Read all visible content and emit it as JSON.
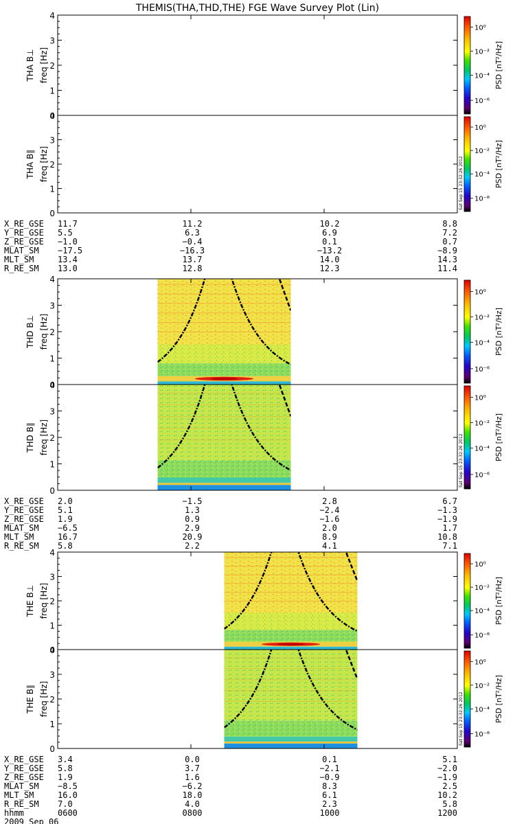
{
  "title": "THEMIS(THA,THD,THE) FGE Wave Survey Plot (Lin)",
  "stamp": "Sat Sep 15 23:32:26 2012",
  "colorbar": {
    "label": "PSD [nT²/Hz]",
    "ticks": [
      "10⁰",
      "10⁻²",
      "10⁻⁴",
      "10⁻⁶"
    ]
  },
  "freq_ticks": [
    "0",
    "1",
    "2",
    "3",
    "4"
  ],
  "chart_data": [
    {
      "type": "heatmap",
      "probe": "THA",
      "panels": [
        {
          "name": "THA B⊥",
          "ylabel": "freq [Hz]",
          "ylim": [
            0,
            4
          ],
          "has_data": false
        },
        {
          "name": "THA B∥",
          "ylabel": "freq [Hz]",
          "ylim": [
            0,
            4
          ],
          "has_data": false
        }
      ],
      "ephemeris": [
        {
          "label": "X_RE_GSE",
          "values": [
            "11.7",
            "11.2",
            "10.2",
            "8.8"
          ]
        },
        {
          "label": "Y_RE_GSE",
          "values": [
            "5.5",
            "6.3",
            "6.9",
            "7.2"
          ]
        },
        {
          "label": "Z_RE_GSE",
          "values": [
            "−1.0",
            "−0.4",
            "0.1",
            "0.7"
          ]
        },
        {
          "label": "MLAT_SM",
          "values": [
            "−17.5",
            "−16.3",
            "−13.2",
            "−8.9"
          ]
        },
        {
          "label": "MLT_SM",
          "values": [
            "13.4",
            "13.7",
            "14.0",
            "14.3"
          ]
        },
        {
          "label": "R_RE_SM",
          "values": [
            "13.0",
            "12.8",
            "12.3",
            "11.4"
          ]
        }
      ]
    },
    {
      "type": "heatmap",
      "probe": "THD",
      "data_interval_hhmm": [
        "0730",
        "0930"
      ],
      "panels": [
        {
          "name": "THD B⊥",
          "ylabel": "freq [Hz]",
          "ylim": [
            0,
            4
          ],
          "has_data": true
        },
        {
          "name": "THD B∥",
          "ylabel": "freq [Hz]",
          "ylim": [
            0,
            4
          ],
          "has_data": true
        }
      ],
      "ephemeris": [
        {
          "label": "X_RE_GSE",
          "values": [
            "2.0",
            "−1.5",
            "2.8",
            "6.7"
          ]
        },
        {
          "label": "Y_RE_GSE",
          "values": [
            "5.1",
            "1.3",
            "−2.4",
            "−1.3"
          ]
        },
        {
          "label": "Z_RE_GSE",
          "values": [
            "1.9",
            "0.9",
            "−1.6",
            "−1.9"
          ]
        },
        {
          "label": "MLAT_SM",
          "values": [
            "−6.5",
            "2.9",
            "2.0",
            "1.7"
          ]
        },
        {
          "label": "MLT_SM",
          "values": [
            "16.7",
            "20.9",
            "8.9",
            "10.8"
          ]
        },
        {
          "label": "R_RE_SM",
          "values": [
            "5.8",
            "2.2",
            "4.1",
            "7.1"
          ]
        }
      ]
    },
    {
      "type": "heatmap",
      "probe": "THE",
      "data_interval_hhmm": [
        "0830",
        "1030"
      ],
      "panels": [
        {
          "name": "THE B⊥",
          "ylabel": "freq [Hz]",
          "ylim": [
            0,
            4
          ],
          "has_data": true
        },
        {
          "name": "THE B∥",
          "ylabel": "freq [Hz]",
          "ylim": [
            0,
            4
          ],
          "has_data": true
        }
      ],
      "ephemeris": [
        {
          "label": "X_RE_GSE",
          "values": [
            "3.4",
            "0.0",
            "0.1",
            "5.1"
          ]
        },
        {
          "label": "Y_RE_GSE",
          "values": [
            "5.8",
            "3.7",
            "−2.1",
            "−2.0"
          ]
        },
        {
          "label": "Z_RE_GSE",
          "values": [
            "1.9",
            "1.6",
            "−0.9",
            "−1.9"
          ]
        },
        {
          "label": "MLAT_SM",
          "values": [
            "−8.5",
            "−6.2",
            "8.3",
            "2.5"
          ]
        },
        {
          "label": "MLT_SM",
          "values": [
            "16.0",
            "18.0",
            "6.1",
            "10.2"
          ]
        },
        {
          "label": "R_RE_SM",
          "values": [
            "7.0",
            "4.0",
            "2.3",
            "5.8"
          ]
        }
      ]
    }
  ],
  "time_axis": {
    "label": "hhmm",
    "ticks": [
      "0600",
      "0800",
      "1000",
      "1200"
    ],
    "date": "2009 Sep 06"
  }
}
